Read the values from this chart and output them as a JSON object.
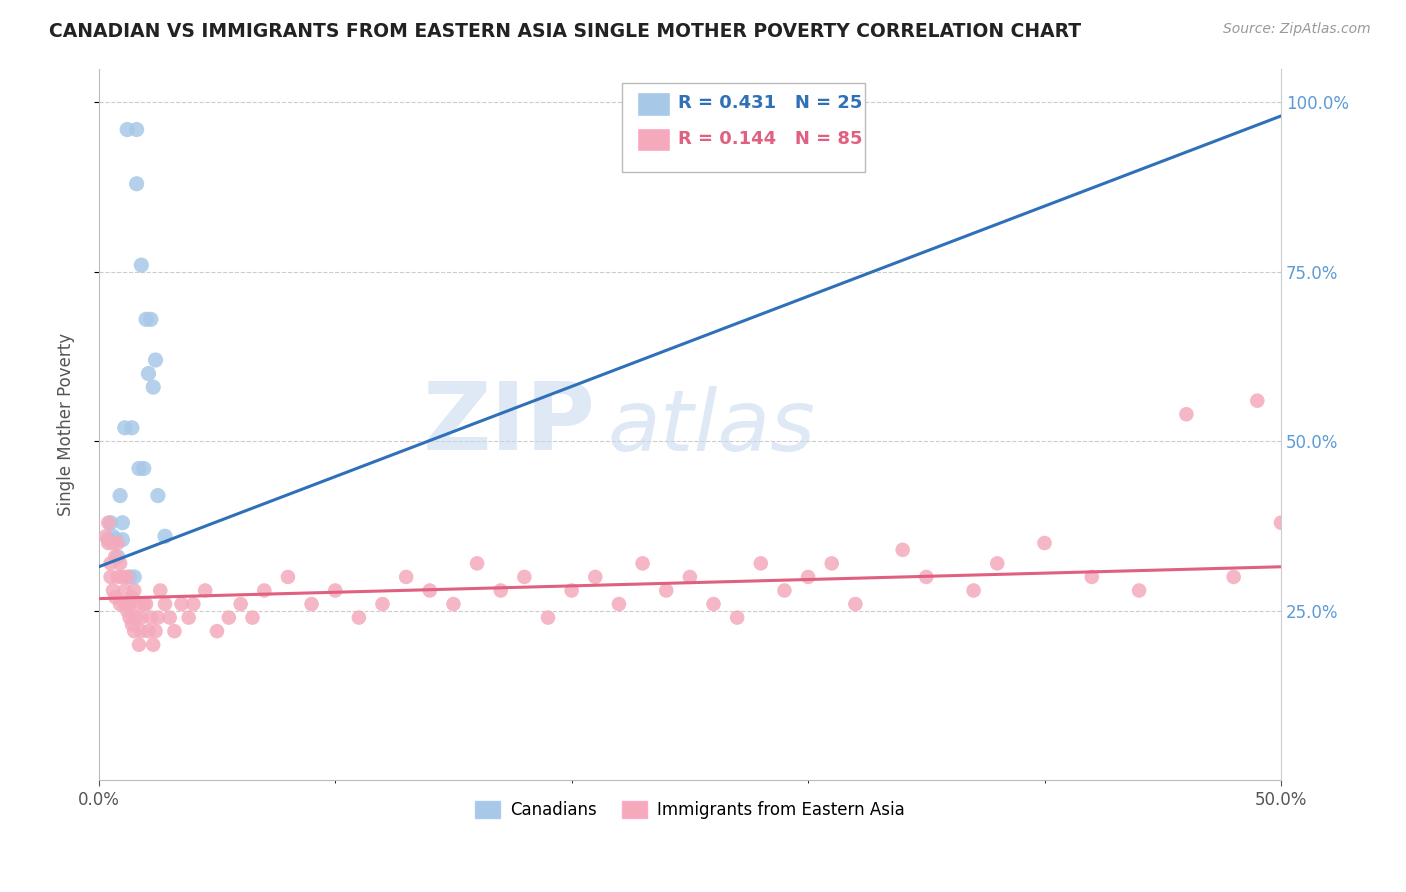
{
  "title": "CANADIAN VS IMMIGRANTS FROM EASTERN ASIA SINGLE MOTHER POVERTY CORRELATION CHART",
  "source": "Source: ZipAtlas.com",
  "ylabel": "Single Mother Poverty",
  "legend_label1": "Canadians",
  "legend_label2": "Immigrants from Eastern Asia",
  "r1": "R = 0.431",
  "n1": "N = 25",
  "r2": "R = 0.144",
  "n2": "N = 85",
  "color_blue": "#A8C8E8",
  "color_pink": "#F4AABB",
  "color_blue_line": "#3070B8",
  "color_pink_line": "#E06080",
  "bg_color": "#FFFFFF",
  "grid_color": "#CCCCCC",
  "watermark_zip": "ZIP",
  "watermark_atlas": "atlas",
  "xlim": [
    0.0,
    0.5
  ],
  "ylim": [
    0.0,
    1.05
  ],
  "canadians_x": [
    0.004,
    0.005,
    0.006,
    0.007,
    0.008,
    0.009,
    0.01,
    0.01,
    0.011,
    0.012,
    0.013,
    0.014,
    0.015,
    0.016,
    0.016,
    0.017,
    0.018,
    0.019,
    0.02,
    0.021,
    0.022,
    0.023,
    0.024,
    0.025,
    0.028
  ],
  "canadians_y": [
    0.355,
    0.38,
    0.36,
    0.355,
    0.33,
    0.42,
    0.355,
    0.38,
    0.52,
    0.96,
    0.3,
    0.52,
    0.3,
    0.96,
    0.88,
    0.46,
    0.76,
    0.46,
    0.68,
    0.6,
    0.68,
    0.58,
    0.62,
    0.42,
    0.36
  ],
  "immigrants_x": [
    0.003,
    0.004,
    0.004,
    0.005,
    0.005,
    0.006,
    0.006,
    0.007,
    0.007,
    0.008,
    0.008,
    0.009,
    0.009,
    0.01,
    0.011,
    0.011,
    0.012,
    0.012,
    0.013,
    0.013,
    0.014,
    0.014,
    0.015,
    0.015,
    0.016,
    0.016,
    0.017,
    0.018,
    0.018,
    0.019,
    0.02,
    0.021,
    0.022,
    0.023,
    0.024,
    0.025,
    0.026,
    0.028,
    0.03,
    0.032,
    0.035,
    0.038,
    0.04,
    0.045,
    0.05,
    0.055,
    0.06,
    0.065,
    0.07,
    0.08,
    0.09,
    0.1,
    0.11,
    0.12,
    0.13,
    0.14,
    0.15,
    0.16,
    0.17,
    0.18,
    0.19,
    0.2,
    0.21,
    0.22,
    0.23,
    0.24,
    0.25,
    0.26,
    0.27,
    0.28,
    0.29,
    0.3,
    0.31,
    0.32,
    0.34,
    0.35,
    0.37,
    0.38,
    0.4,
    0.42,
    0.44,
    0.46,
    0.48,
    0.49,
    0.5
  ],
  "immigrants_y": [
    0.36,
    0.38,
    0.35,
    0.32,
    0.3,
    0.35,
    0.28,
    0.33,
    0.27,
    0.35,
    0.3,
    0.32,
    0.26,
    0.3,
    0.26,
    0.28,
    0.3,
    0.25,
    0.24,
    0.26,
    0.27,
    0.23,
    0.28,
    0.22,
    0.24,
    0.26,
    0.2,
    0.24,
    0.22,
    0.26,
    0.26,
    0.22,
    0.24,
    0.2,
    0.22,
    0.24,
    0.28,
    0.26,
    0.24,
    0.22,
    0.26,
    0.24,
    0.26,
    0.28,
    0.22,
    0.24,
    0.26,
    0.24,
    0.28,
    0.3,
    0.26,
    0.28,
    0.24,
    0.26,
    0.3,
    0.28,
    0.26,
    0.32,
    0.28,
    0.3,
    0.24,
    0.28,
    0.3,
    0.26,
    0.32,
    0.28,
    0.3,
    0.26,
    0.24,
    0.32,
    0.28,
    0.3,
    0.32,
    0.26,
    0.34,
    0.3,
    0.28,
    0.32,
    0.35,
    0.3,
    0.28,
    0.54,
    0.3,
    0.56,
    0.38
  ],
  "blue_line_x": [
    0.0,
    0.5
  ],
  "blue_line_y": [
    0.315,
    0.98
  ],
  "pink_line_x": [
    0.0,
    0.5
  ],
  "pink_line_y": [
    0.268,
    0.315
  ]
}
